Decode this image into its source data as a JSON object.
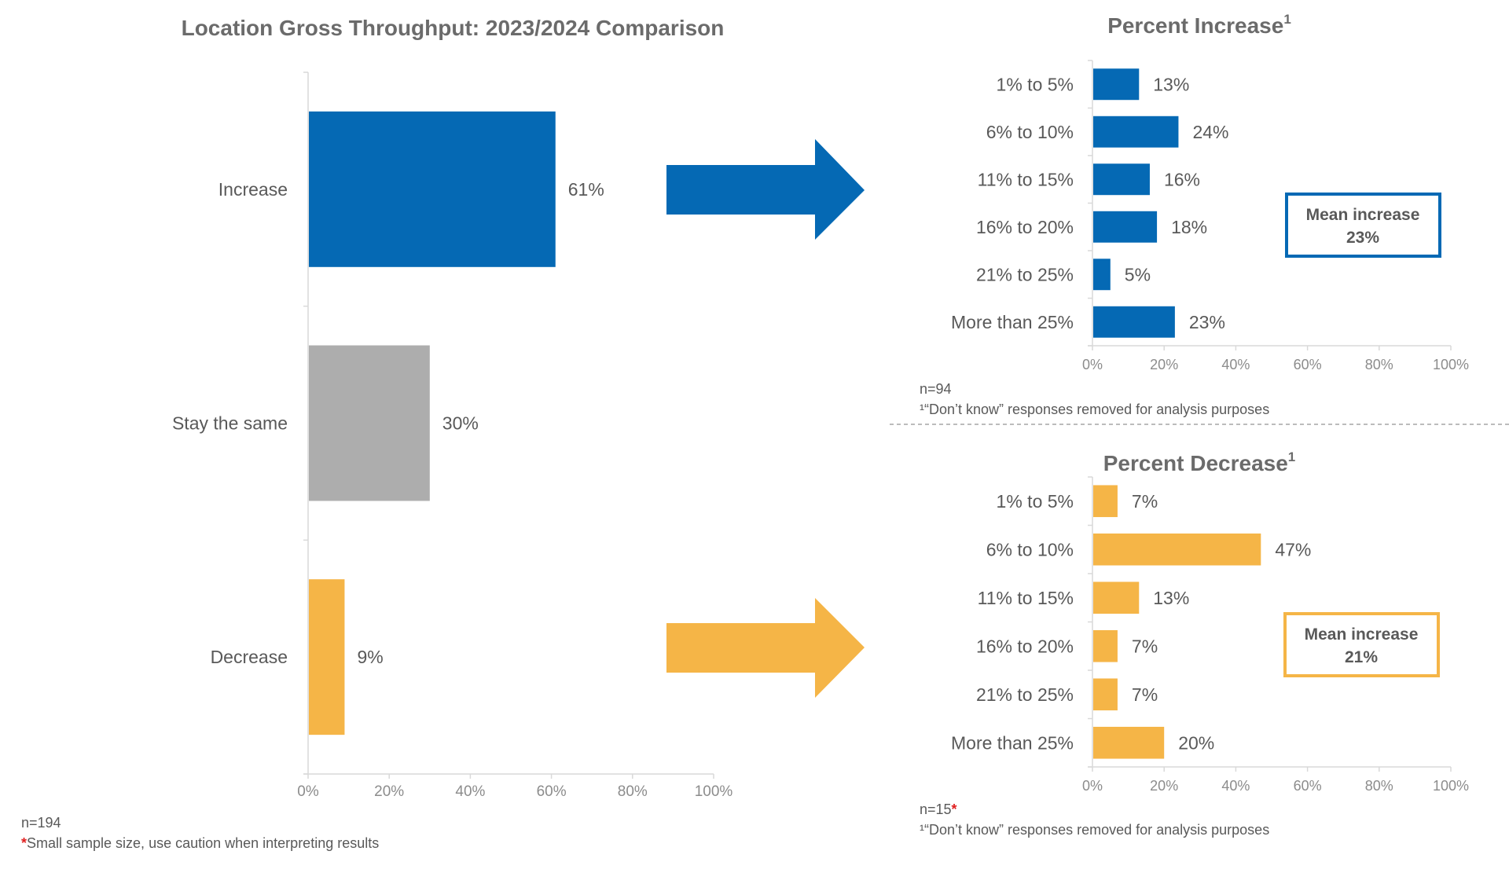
{
  "colors": {
    "blue": "#0569b4",
    "gray": "#adadad",
    "gold": "#f5b547",
    "axis": "#d9d9d9",
    "divider": "#a6a6a6"
  },
  "chart_data": [
    {
      "type": "bar",
      "orientation": "horizontal",
      "title": "Location Gross Throughput: 2023/2024 Comparison",
      "categories": [
        "Increase",
        "Stay the same",
        "Decrease"
      ],
      "values": [
        61,
        30,
        9
      ],
      "value_labels": [
        "61%",
        "30%",
        "9%"
      ],
      "bar_colors": [
        "blue",
        "gray",
        "gold"
      ],
      "xlim": [
        0,
        100
      ],
      "x_ticks": [
        "0%",
        "20%",
        "40%",
        "60%",
        "80%",
        "100%"
      ],
      "notes": {
        "n": "n=194",
        "star": "*",
        "caution": "Small sample size, use caution when interpreting results"
      }
    },
    {
      "type": "bar",
      "orientation": "horizontal",
      "title": "Percent Increase",
      "title_sup": "1",
      "categories": [
        "1% to 5%",
        "6% to 10%",
        "11% to 15%",
        "16% to 20%",
        "21% to 25%",
        "More than 25%"
      ],
      "values": [
        13,
        24,
        16,
        18,
        5,
        23
      ],
      "value_labels": [
        "13%",
        "24%",
        "16%",
        "18%",
        "5%",
        "23%"
      ],
      "bar_color": "blue",
      "xlim": [
        0,
        100
      ],
      "x_ticks": [
        "0%",
        "20%",
        "40%",
        "60%",
        "80%",
        "100%"
      ],
      "mean_box": {
        "label": "Mean increase",
        "value": "23%"
      },
      "notes": {
        "n": "n=94",
        "n_star": "",
        "footnote": "¹“Don’t know” responses removed for analysis purposes"
      }
    },
    {
      "type": "bar",
      "orientation": "horizontal",
      "title": "Percent Decrease",
      "title_sup": "1",
      "categories": [
        "1% to 5%",
        "6% to 10%",
        "11% to 15%",
        "16% to 20%",
        "21% to 25%",
        "More than 25%"
      ],
      "values": [
        7,
        47,
        13,
        7,
        7,
        20
      ],
      "value_labels": [
        "7%",
        "47%",
        "13%",
        "7%",
        "7%",
        "20%"
      ],
      "bar_color": "gold",
      "xlim": [
        0,
        100
      ],
      "x_ticks": [
        "0%",
        "20%",
        "40%",
        "60%",
        "80%",
        "100%"
      ],
      "mean_box": {
        "label": "Mean increase",
        "value": "21%"
      },
      "notes": {
        "n": "n=15",
        "n_star": "*",
        "footnote": "¹“Don’t know” responses removed for analysis purposes"
      }
    }
  ]
}
